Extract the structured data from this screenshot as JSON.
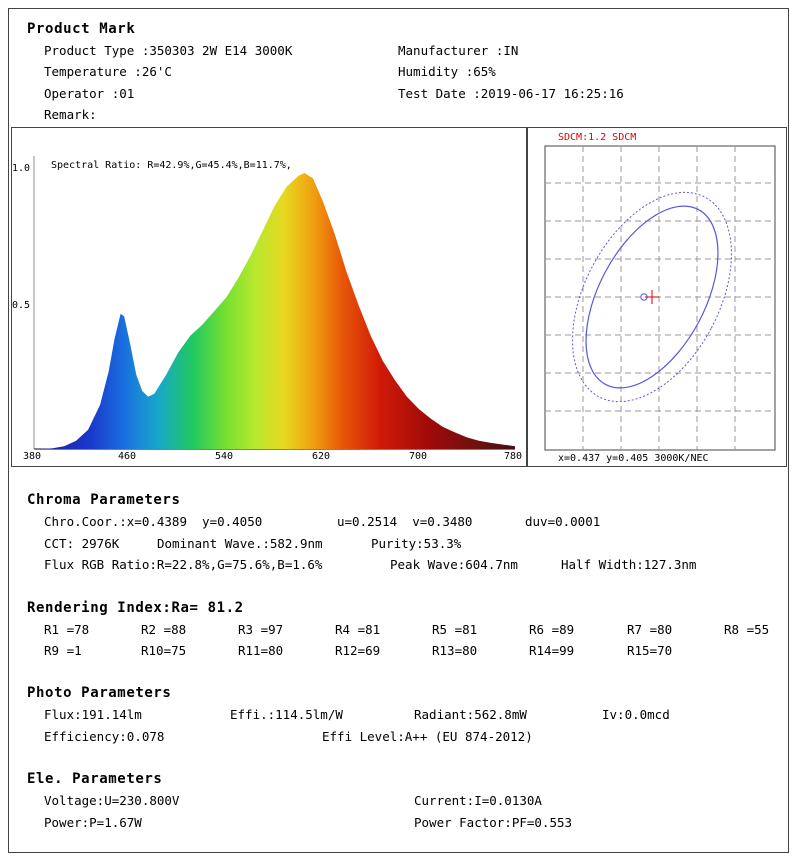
{
  "product_mark": {
    "heading": "Product Mark",
    "product_type": "Product Type :350303 2W E14 3000K",
    "manufacturer": "Manufacturer :IN",
    "temperature": "Temperature :26'C",
    "humidity": "Humidity :65%",
    "operator": "Operator :01",
    "test_date": "Test Date :2019-06-17 16:25:16",
    "remark": "Remark:"
  },
  "spectrum": {
    "ratio_text": "Spectral Ratio:  R=42.9%,G=45.4%,B=11.7%,",
    "y_labels": [
      "1.0",
      "0.5"
    ],
    "x_labels": [
      "380",
      "460",
      "540",
      "620",
      "700",
      "780"
    ]
  },
  "sdcm": {
    "title": "SDCM:1.2 SDCM",
    "footer": "x=0.437  y=0.405  3000K/NEC",
    "title_color": "#e00000",
    "ellipse_color": "#5a5ad8",
    "cross_color": "#e00000"
  },
  "chroma": {
    "heading": "Chroma Parameters",
    "coor": "Chro.Coor.:x=0.4389  y=0.4050",
    "u": "u=0.2514  v=0.3480",
    "duv": "duv=0.0001",
    "cct": "CCT: 2976K",
    "dominant": "Dominant Wave.:582.9nm",
    "purity": "Purity:53.3%",
    "flux_rgb": "Flux RGB Ratio:R=22.8%,G=75.6%,B=1.6%",
    "peak": "Peak Wave:604.7nm",
    "half": "Half Width:127.3nm"
  },
  "rendering": {
    "heading": "Rendering Index:Ra= 81.2",
    "row1": [
      "R1 =78",
      "R2 =88",
      "R3 =97",
      "R4 =81",
      "R5 =81",
      "R6 =89",
      "R7 =80",
      "R8 =55"
    ],
    "row2": [
      "R9 =1",
      "R10=75",
      "R11=80",
      "R12=69",
      "R13=80",
      "R14=99",
      "R15=70"
    ]
  },
  "photo": {
    "heading": "Photo Parameters",
    "flux": "Flux:191.14lm",
    "effi": "Effi.:114.5lm/W",
    "radiant": "Radiant:562.8mW",
    "iv": "Iv:0.0mcd",
    "efficiency": "Efficiency:0.078",
    "effi_level": "Effi Level:A++ (EU 874-2012)"
  },
  "electric": {
    "heading": "Ele. Parameters",
    "voltage": "Voltage:U=230.800V",
    "current": "Current:I=0.0130A",
    "power": "Power:P=1.67W",
    "pf": "Power Factor:PF=0.553"
  }
}
